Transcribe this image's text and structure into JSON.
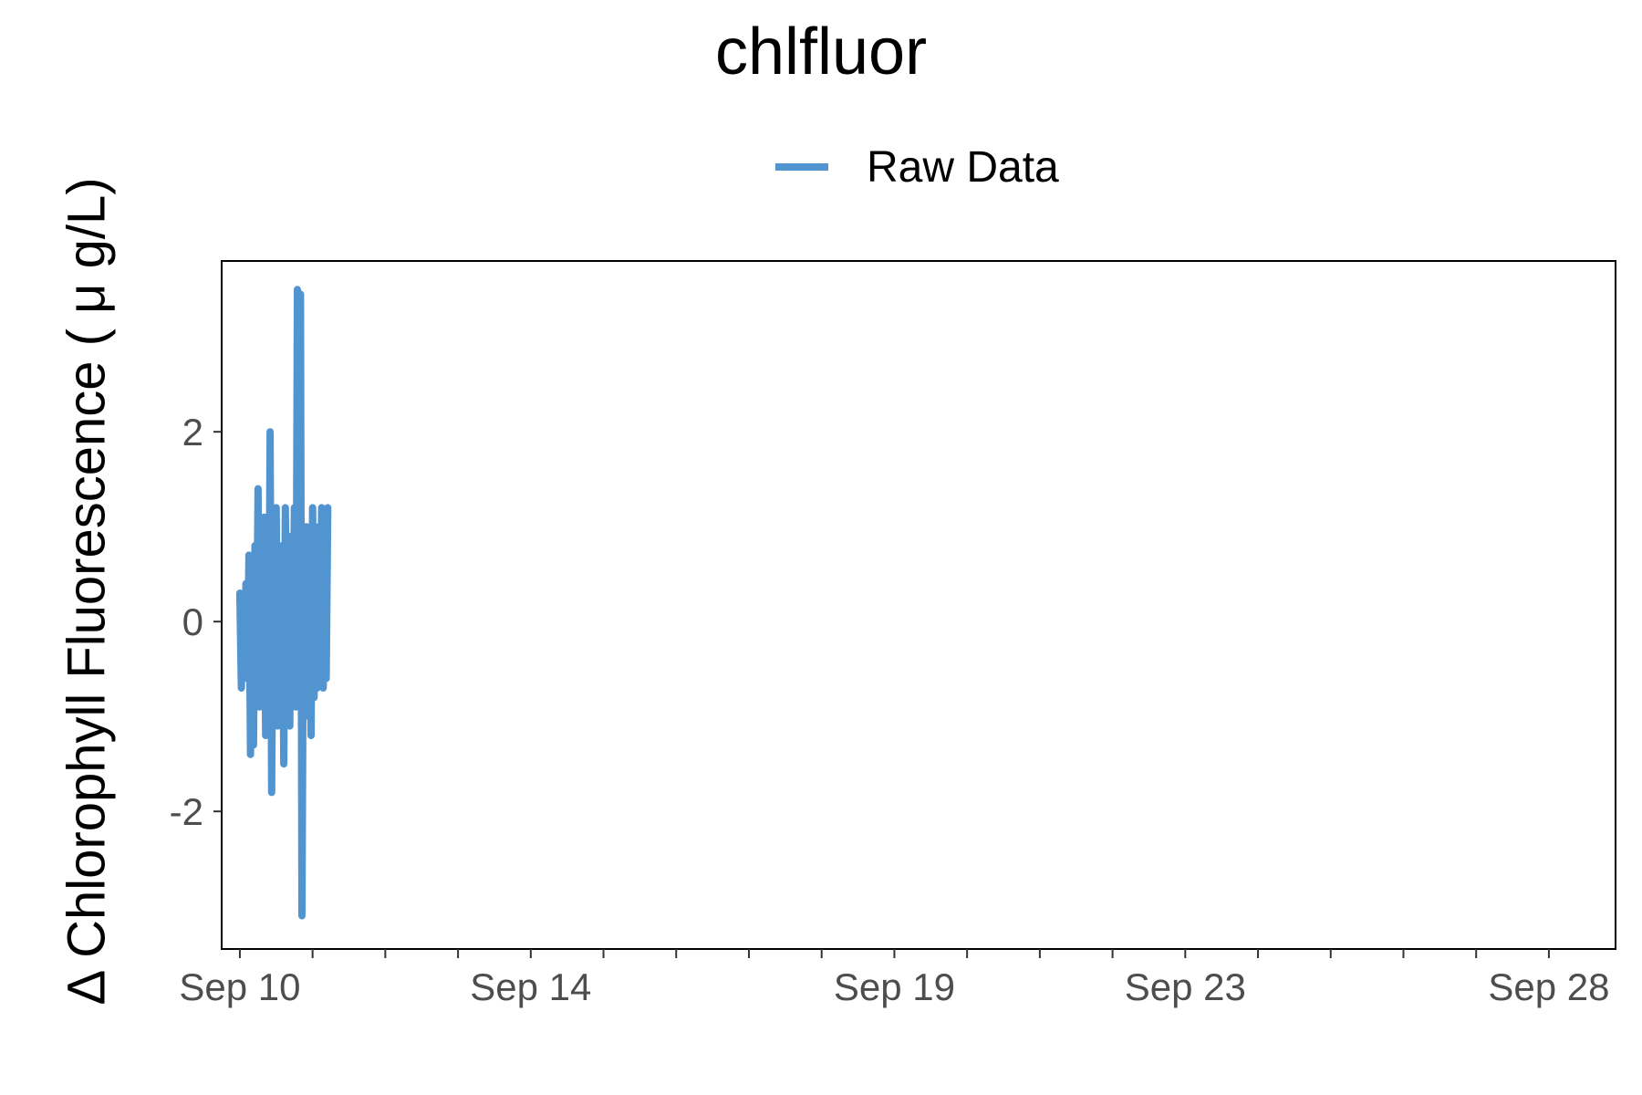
{
  "chart_data": {
    "type": "line",
    "title": "chlfluor",
    "ylabel": "Δ Chlorophyll Fluorescence ( μ g/L)",
    "xlabel": "",
    "legend": {
      "position": "top",
      "entries": [
        {
          "name": "Raw Data",
          "color": "#5294cf"
        }
      ]
    },
    "xlim": [
      "2023-09-09T18:00",
      "2023-09-28T22:00"
    ],
    "ylim": [
      -3.45,
      3.8
    ],
    "x_ticks": [
      {
        "date": "2023-09-10",
        "label": "Sep 10"
      },
      {
        "date": "2023-09-14",
        "label": "Sep 14"
      },
      {
        "date": "2023-09-19",
        "label": "Sep 19"
      },
      {
        "date": "2023-09-23",
        "label": "Sep 23"
      },
      {
        "date": "2023-09-28",
        "label": "Sep 28"
      }
    ],
    "x_minor_ticks": [
      "2023-09-11",
      "2023-09-12",
      "2023-09-13",
      "2023-09-15",
      "2023-09-16",
      "2023-09-17",
      "2023-09-18",
      "2023-09-20",
      "2023-09-21",
      "2023-09-22",
      "2023-09-24",
      "2023-09-25",
      "2023-09-26",
      "2023-09-27"
    ],
    "y_ticks": [
      {
        "value": -2,
        "label": "-2"
      },
      {
        "value": 0,
        "label": "0"
      },
      {
        "value": 2,
        "label": "2"
      }
    ],
    "grid": false,
    "series": [
      {
        "name": "Raw Data",
        "color": "#5294cf",
        "x": [
          "2023-09-10T00:00",
          "2023-09-10T00:30",
          "2023-09-10T01:00",
          "2023-09-10T01:30",
          "2023-09-10T02:00",
          "2023-09-10T02:30",
          "2023-09-10T03:00",
          "2023-09-10T03:30",
          "2023-09-10T04:00",
          "2023-09-10T04:30",
          "2023-09-10T05:00",
          "2023-09-10T05:30",
          "2023-09-10T06:00",
          "2023-09-10T06:30",
          "2023-09-10T07:00",
          "2023-09-10T07:30",
          "2023-09-10T08:00",
          "2023-09-10T08:30",
          "2023-09-10T09:00",
          "2023-09-10T09:30",
          "2023-09-10T10:00",
          "2023-09-10T10:30",
          "2023-09-10T11:00",
          "2023-09-10T11:30",
          "2023-09-10T12:00",
          "2023-09-10T12:30",
          "2023-09-10T13:00",
          "2023-09-10T13:30",
          "2023-09-10T14:00",
          "2023-09-10T14:30",
          "2023-09-10T15:00",
          "2023-09-10T15:30",
          "2023-09-10T16:00",
          "2023-09-10T16:30",
          "2023-09-10T17:00",
          "2023-09-10T17:30",
          "2023-09-10T18:00",
          "2023-09-10T18:30",
          "2023-09-10T19:00",
          "2023-09-10T19:30",
          "2023-09-10T20:00",
          "2023-09-10T20:30",
          "2023-09-10T21:00",
          "2023-09-10T21:30",
          "2023-09-10T22:00",
          "2023-09-10T22:30",
          "2023-09-10T23:00",
          "2023-09-10T23:30",
          "2023-09-11T00:00",
          "2023-09-11T00:30",
          "2023-09-11T01:00",
          "2023-09-11T01:30",
          "2023-09-11T02:00",
          "2023-09-11T02:30",
          "2023-09-11T03:00",
          "2023-09-11T03:30",
          "2023-09-11T04:00",
          "2023-09-11T04:30",
          "2023-09-11T05:00"
        ],
        "y": [
          0.3,
          -0.7,
          0.2,
          -0.5,
          0.4,
          -0.6,
          0.7,
          -1.4,
          0.5,
          -1.3,
          0.8,
          -0.4,
          1.4,
          -0.9,
          0.6,
          -0.3,
          1.1,
          -1.2,
          0.4,
          -0.8,
          2.0,
          -1.8,
          0.9,
          -0.5,
          1.2,
          -1.1,
          0.3,
          -0.6,
          0.8,
          -1.5,
          1.2,
          -0.4,
          0.6,
          -1.1,
          0.9,
          -0.7,
          1.2,
          -0.9,
          3.5,
          -0.8,
          3.45,
          -3.1,
          0.5,
          -1.0,
          1.0,
          -0.6,
          0.7,
          -1.2,
          1.2,
          -0.8,
          0.3,
          -0.7,
          1.0,
          -0.5,
          1.2,
          -0.7,
          0.4,
          -0.6,
          1.2
        ]
      }
    ]
  }
}
